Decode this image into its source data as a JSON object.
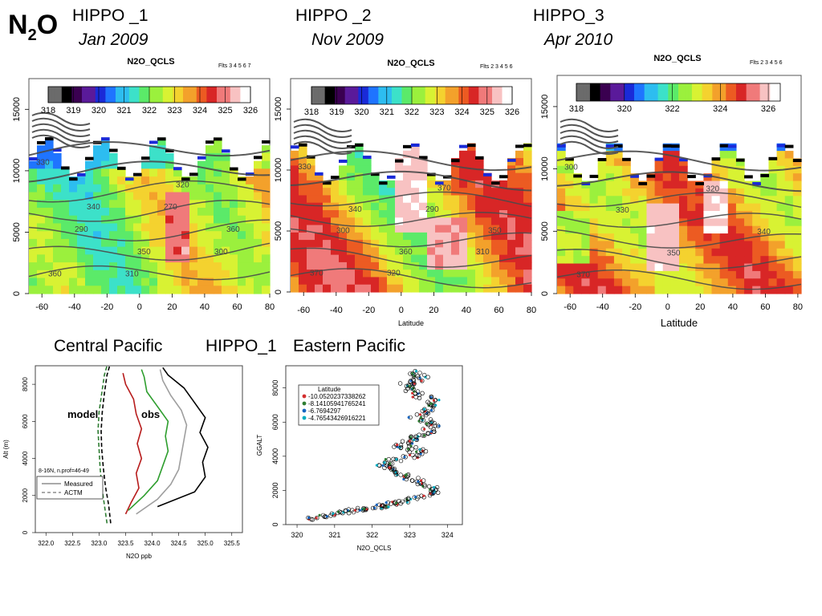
{
  "header": {
    "species_main": "N",
    "species_sub": "2",
    "species_tail": "O"
  },
  "campaigns": [
    {
      "name": "HIPPO _1",
      "date": "Jan 2009"
    },
    {
      "name": "HIPPO _2",
      "date": "Nov 2009"
    },
    {
      "name": "HIPPO_3",
      "date": "Apr 2010"
    }
  ],
  "section_labels": {
    "left": "Central Pacific",
    "middle": "HIPPO_1",
    "right": "Eastern Pacific"
  },
  "chart_data": [
    {
      "type": "heatmap",
      "title": "N2O_QCLS",
      "flights_label": "Flts 3   4   5   6   7",
      "colorbar_ticks": [
        "318",
        "319",
        "320",
        "321",
        "322",
        "323",
        "324",
        "325",
        "326"
      ],
      "colorbar_range": [
        318,
        326
      ],
      "xticks": [
        "-60",
        "-40",
        "-20",
        "0",
        "20",
        "40",
        "60",
        "80"
      ],
      "xlim": [
        -68,
        80
      ],
      "yticks": [
        "0",
        "5000",
        "10000",
        "15000"
      ],
      "ylim": [
        0,
        17500
      ],
      "xlabel": "",
      "contour_labels": [
        "360",
        "350",
        "360",
        "340",
        "320",
        "330",
        "310",
        "300",
        "290",
        "270"
      ]
    },
    {
      "type": "heatmap",
      "title": "N2O_QCLS",
      "flights_label": "Flts 2   3   4   5   6",
      "colorbar_ticks": [
        "318",
        "319",
        "320",
        "321",
        "322",
        "323",
        "324",
        "325",
        "326"
      ],
      "colorbar_range": [
        318,
        326
      ],
      "xticks": [
        "-60",
        "-40",
        "-20",
        "0",
        "20",
        "40",
        "60",
        "80"
      ],
      "xlim": [
        -68,
        80
      ],
      "yticks": [
        "0",
        "5000",
        "10000",
        "15000"
      ],
      "ylim": [
        0,
        17500
      ],
      "xlabel": "Latitude",
      "contour_labels": [
        "370",
        "360",
        "350",
        "340",
        "370",
        "330",
        "320",
        "310",
        "300",
        "290"
      ]
    },
    {
      "type": "heatmap",
      "title": "N2O_QCLS",
      "flights_label": "Flts 2   3   4   5   6",
      "colorbar_ticks": [
        "318",
        "320",
        "322",
        "324",
        "326"
      ],
      "colorbar_range": [
        318,
        326.5
      ],
      "xticks": [
        "-60",
        "-40",
        "-20",
        "0",
        "20",
        "40",
        "60",
        "80"
      ],
      "xlim": [
        -68,
        82
      ],
      "yticks": [
        "0",
        "5000",
        "10000",
        "15000"
      ],
      "ylim": [
        0,
        17500
      ],
      "xlabel": "Latitude",
      "contour_labels": [
        "370",
        "350",
        "340",
        "330",
        "320",
        "300"
      ]
    },
    {
      "type": "line",
      "title": "",
      "xlabel": "N2O ppb",
      "ylabel": "Alt (m)",
      "xlim": [
        321.8,
        325.7
      ],
      "ylim": [
        0,
        9000
      ],
      "xticks": [
        "322.0",
        "322.5",
        "323.0",
        "323.5",
        "324.0",
        "324.5",
        "325.0",
        "325.5"
      ],
      "yticks": [
        "0",
        "2000",
        "4000",
        "6000",
        "8000"
      ],
      "legend_title": "8-16N, n.prof=46-49",
      "legend_entries": [
        "Measured",
        "ACTM"
      ],
      "annotations": [
        "model",
        "obs"
      ],
      "series": [
        {
          "color": "#2e7d32",
          "dashed": true,
          "pts": [
            [
              323.15,
              500
            ],
            [
              323.1,
              1500
            ],
            [
              323.05,
              2500
            ],
            [
              323.02,
              3500
            ],
            [
              323.0,
              4500
            ],
            [
              322.98,
              5500
            ],
            [
              323.0,
              6500
            ],
            [
              323.05,
              7500
            ],
            [
              323.1,
              8500
            ],
            [
              323.15,
              9000
            ]
          ]
        },
        {
          "color": "#000000",
          "dashed": true,
          "pts": [
            [
              323.22,
              500
            ],
            [
              323.18,
              1500
            ],
            [
              323.12,
              2500
            ],
            [
              323.08,
              3500
            ],
            [
              323.05,
              4500
            ],
            [
              323.04,
              5500
            ],
            [
              323.06,
              6500
            ],
            [
              323.1,
              7500
            ],
            [
              323.15,
              8500
            ],
            [
              323.2,
              9000
            ]
          ]
        },
        {
          "color": "#b71c1c",
          "dashed": false,
          "pts": [
            [
              323.5,
              1000
            ],
            [
              323.6,
              1600
            ],
            [
              323.75,
              2400
            ],
            [
              323.7,
              3200
            ],
            [
              323.8,
              4000
            ],
            [
              323.72,
              4800
            ],
            [
              323.8,
              5600
            ],
            [
              323.7,
              6400
            ],
            [
              323.65,
              7200
            ],
            [
              323.5,
              8000
            ],
            [
              323.45,
              8600
            ]
          ]
        },
        {
          "color": "#2e9e2e",
          "dashed": false,
          "pts": [
            [
              323.55,
              1200
            ],
            [
              323.85,
              2000
            ],
            [
              324.1,
              2800
            ],
            [
              324.2,
              3600
            ],
            [
              324.3,
              4400
            ],
            [
              324.25,
              5200
            ],
            [
              324.3,
              6000
            ],
            [
              324.1,
              6800
            ],
            [
              323.9,
              7600
            ],
            [
              323.85,
              8400
            ],
            [
              323.8,
              8800
            ]
          ]
        },
        {
          "color": "#9e9e9e",
          "dashed": false,
          "pts": [
            [
              323.7,
              1000
            ],
            [
              324.1,
              1800
            ],
            [
              324.35,
              2600
            ],
            [
              324.5,
              3400
            ],
            [
              324.55,
              4200
            ],
            [
              324.6,
              5000
            ],
            [
              324.65,
              5800
            ],
            [
              324.55,
              6600
            ],
            [
              324.35,
              7400
            ],
            [
              324.2,
              8200
            ],
            [
              324.15,
              8800
            ]
          ]
        },
        {
          "color": "#000000",
          "dashed": false,
          "pts": [
            [
              324.1,
              1400
            ],
            [
              324.8,
              2200
            ],
            [
              325.0,
              3000
            ],
            [
              324.95,
              3800
            ],
            [
              325.05,
              4600
            ],
            [
              324.9,
              5400
            ],
            [
              325.0,
              6200
            ],
            [
              324.8,
              7000
            ],
            [
              324.6,
              7800
            ],
            [
              324.3,
              8500
            ],
            [
              324.2,
              8900
            ]
          ]
        }
      ]
    },
    {
      "type": "scatter",
      "title": "",
      "xlabel": "N2O_QCLS",
      "ylabel": "GGALT",
      "xlim": [
        319.7,
        324.4
      ],
      "ylim": [
        0,
        9300
      ],
      "xticks": [
        "320",
        "321",
        "322",
        "323",
        "324"
      ],
      "yticks": [
        "0",
        "2000",
        "4000",
        "6000",
        "8000"
      ],
      "legend_title": "Latitude",
      "legend_entries": [
        "-10.0520237338262",
        "-8.14105941765241",
        "-6.7694297",
        "-4.76543426916221"
      ],
      "legend_colors": [
        "#d32f2f",
        "#2e7d32",
        "#1565c0",
        "#00acc1"
      ],
      "profile": [
        [
          320.4,
          300
        ],
        [
          320.9,
          600
        ],
        [
          321.4,
          800
        ],
        [
          321.9,
          950
        ],
        [
          322.3,
          1100
        ],
        [
          322.8,
          1300
        ],
        [
          323.3,
          1600
        ],
        [
          323.6,
          2000
        ],
        [
          323.4,
          2400
        ],
        [
          323.0,
          2800
        ],
        [
          322.5,
          3200
        ],
        [
          322.2,
          3500
        ],
        [
          322.9,
          3900
        ],
        [
          323.3,
          4300
        ],
        [
          322.7,
          4600
        ],
        [
          323.1,
          5000
        ],
        [
          323.5,
          5400
        ],
        [
          323.6,
          5900
        ],
        [
          323.2,
          6300
        ],
        [
          323.4,
          6800
        ],
        [
          323.5,
          7300
        ],
        [
          323.1,
          7800
        ],
        [
          322.9,
          8200
        ],
        [
          323.3,
          8600
        ],
        [
          323.0,
          9000
        ]
      ]
    }
  ]
}
